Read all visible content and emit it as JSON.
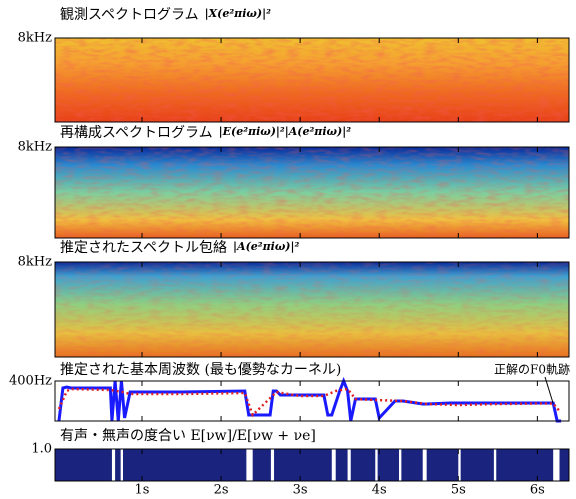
{
  "chart_data": [
    {
      "type": "spectrogram",
      "title": "観測スペクトログラム",
      "formula": "|X(e²πiω)|²",
      "ylim": [
        0,
        8000
      ],
      "yticks": [
        {
          "value": 8000,
          "label": "8kHz"
        }
      ]
    },
    {
      "type": "spectrogram",
      "title": "再構成スペクトログラム",
      "formula": "|E(e²πiω)|²|A(e²πiω)|²",
      "ylim": [
        0,
        8000
      ],
      "yticks": [
        {
          "value": 8000,
          "label": "8kHz"
        }
      ]
    },
    {
      "type": "spectrogram",
      "title": "推定されたスペクトル包絡",
      "formula": "|A(e²πiω)|²",
      "ylim": [
        0,
        8000
      ],
      "yticks": [
        {
          "value": 8000,
          "label": "8kHz"
        }
      ]
    },
    {
      "type": "line",
      "title": "推定された基本周波数 (最も優勢なカーネル)",
      "annotation": "正解のF0軌跡",
      "ylim": [
        0,
        400
      ],
      "yticks": [
        {
          "value": 400,
          "label": "400Hz"
        }
      ],
      "series": [
        {
          "color": "#1a1aff",
          "style": "solid",
          "x": [
            -0.05,
            0.0,
            0.05,
            0.1,
            0.6,
            0.62,
            0.66,
            0.7,
            0.74,
            0.78,
            0.85,
            1.5,
            2.3,
            2.35,
            2.4,
            2.62,
            2.66,
            2.7,
            2.75,
            3.0,
            3.3,
            3.35,
            3.4,
            3.5,
            3.55,
            3.6,
            3.64,
            3.7,
            3.95,
            4.0,
            4.2,
            4.3,
            4.55,
            4.6,
            4.9,
            5.2,
            5.5,
            6.0,
            6.2,
            6.25,
            6.3
          ],
          "values": [
            0,
            330,
            340,
            330,
            330,
            0,
            400,
            0,
            400,
            30,
            290,
            290,
            300,
            60,
            60,
            60,
            300,
            300,
            260,
            260,
            260,
            60,
            60,
            300,
            400,
            300,
            0,
            220,
            220,
            30,
            200,
            200,
            170,
            170,
            180,
            180,
            180,
            180,
            180,
            0,
            0
          ]
        },
        {
          "color": "#e02020",
          "style": "dotted",
          "x": [
            -0.05,
            0.05,
            0.1,
            0.6,
            0.75,
            0.85,
            1.5,
            2.3,
            2.4,
            2.7,
            3.0,
            3.3,
            3.45,
            3.6,
            3.7,
            3.95,
            4.3,
            4.6,
            5.0,
            5.5,
            6.0,
            6.2,
            6.28
          ],
          "values": [
            120,
            300,
            320,
            310,
            290,
            270,
            270,
            280,
            60,
            290,
            250,
            250,
            300,
            320,
            220,
            210,
            200,
            170,
            160,
            170,
            175,
            175,
            100
          ]
        }
      ]
    },
    {
      "type": "step",
      "title": "有声・無声の度合い E[νw]/E[νw + νe]",
      "ylim": [
        0,
        1
      ],
      "yticks": [
        {
          "value": 1,
          "label": "1.0"
        }
      ],
      "xlim": [
        -0.1,
        6.4
      ],
      "xticks": [
        {
          "value": 1,
          "label": "1s"
        },
        {
          "value": 2,
          "label": "2s"
        },
        {
          "value": 3,
          "label": "3s"
        },
        {
          "value": 4,
          "label": "4s"
        },
        {
          "value": 5,
          "label": "5s"
        },
        {
          "value": 6,
          "label": "6s"
        }
      ],
      "color": "#1a237e",
      "x": [
        -0.1,
        0.62,
        0.66,
        0.73,
        0.76,
        2.32,
        2.4,
        2.63,
        2.67,
        3.4,
        3.45,
        3.6,
        3.64,
        3.95,
        3.98,
        4.25,
        4.28,
        4.55,
        4.6,
        5.0,
        5.03,
        5.45,
        5.48,
        6.2,
        6.28
      ],
      "values": [
        1,
        0,
        1,
        0,
        1,
        0,
        1,
        0,
        1,
        0,
        1,
        0,
        1,
        0,
        1,
        0,
        1,
        0,
        1,
        0,
        1,
        0,
        1,
        0,
        1
      ]
    }
  ]
}
